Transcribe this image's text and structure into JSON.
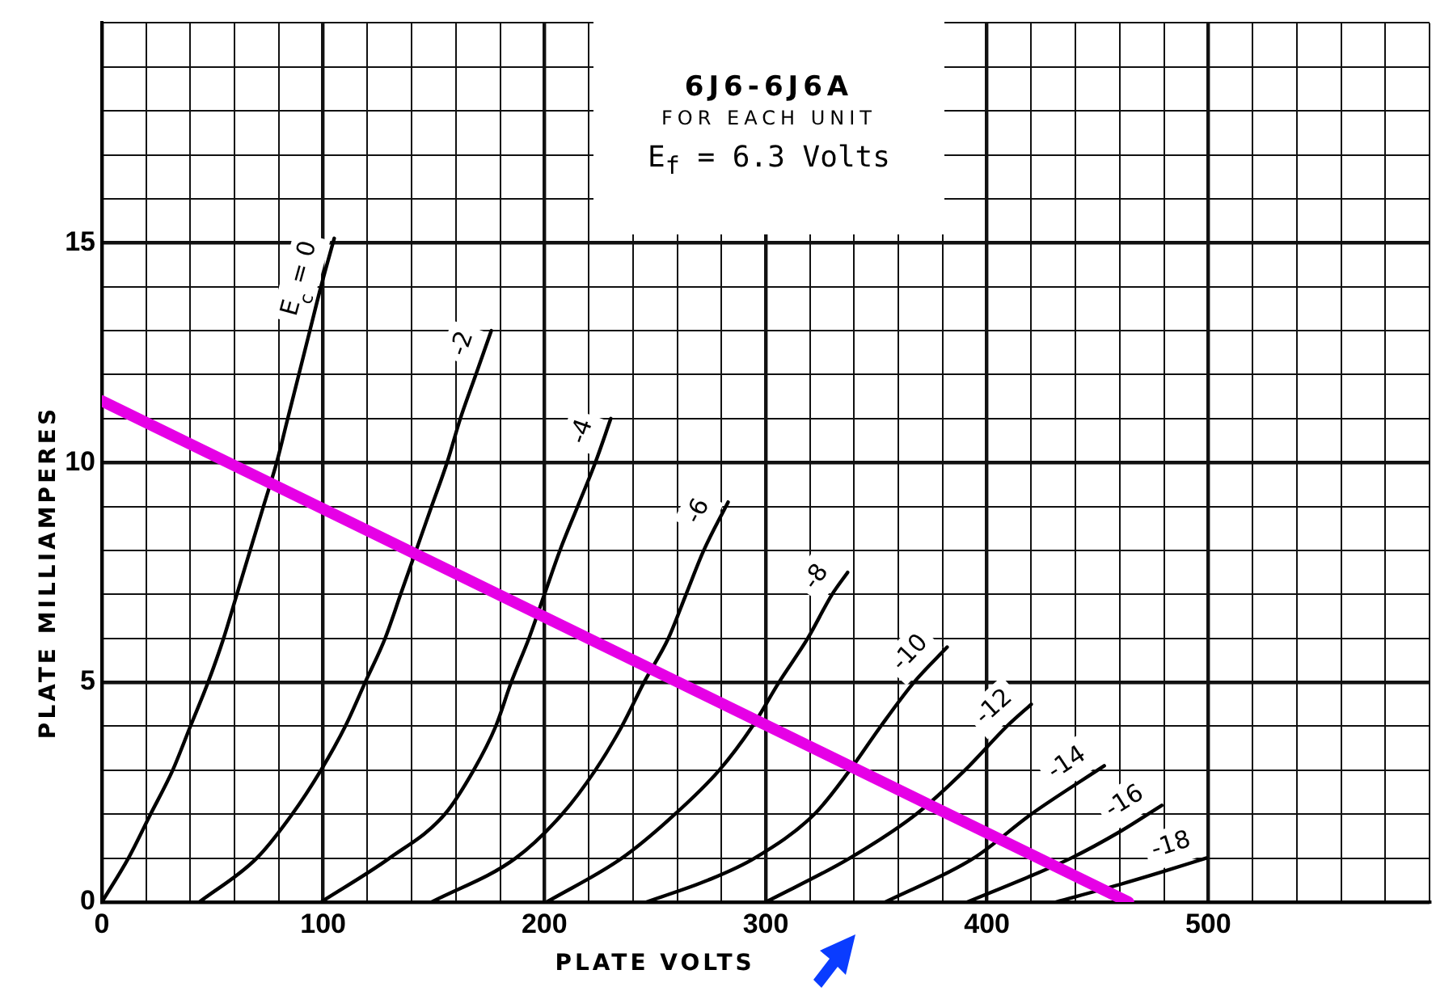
{
  "chart_data": {
    "type": "line",
    "title": "6J6-6J6A",
    "subtitle": "FOR EACH UNIT",
    "annotations": [
      "E$_{f}$ = 6.3 Volts"
    ],
    "xlabel": "PLATE VOLTS",
    "ylabel": "PLATE MILLIAMPERES",
    "xlim": [
      0,
      600
    ],
    "ylim": [
      0,
      20
    ],
    "xticks": [
      0,
      {
        "value": 20,
        "label": null
      },
      {
        "value": 40,
        "label": null
      },
      {
        "value": 60,
        "label": null
      },
      {
        "value": 80,
        "label": null
      },
      100,
      {
        "value": 120,
        "label": null
      },
      {
        "value": 140,
        "label": null
      },
      {
        "value": 160,
        "label": null
      },
      {
        "value": 180,
        "label": null
      },
      200,
      {
        "value": 220,
        "label": null
      },
      {
        "value": 240,
        "label": null
      },
      {
        "value": 260,
        "label": null
      },
      {
        "value": 280,
        "label": null
      },
      300,
      {
        "value": 320,
        "label": null
      },
      {
        "value": 340,
        "label": null
      },
      {
        "value": 360,
        "label": null
      },
      {
        "value": 380,
        "label": null
      },
      400,
      {
        "value": 420,
        "label": null
      },
      {
        "value": 440,
        "label": null
      },
      {
        "value": 460,
        "label": null
      },
      {
        "value": 480,
        "label": null
      },
      500,
      {
        "value": 520,
        "label": null
      },
      {
        "value": 540,
        "label": null
      },
      {
        "value": 560,
        "label": null
      },
      {
        "value": 580,
        "label": null
      },
      {
        "value": 600,
        "label": null
      }
    ],
    "yticks": [
      0,
      {
        "value": 1,
        "label": null
      },
      {
        "value": 2,
        "label": null
      },
      {
        "value": 3,
        "label": null
      },
      {
        "value": 4,
        "label": null
      },
      5,
      {
        "value": 6,
        "label": null
      },
      {
        "value": 7,
        "label": null
      },
      {
        "value": 8,
        "label": null
      },
      {
        "value": 9,
        "label": null
      },
      10,
      {
        "value": 11,
        "label": null
      },
      {
        "value": 12,
        "label": null
      },
      {
        "value": 13,
        "label": null
      },
      {
        "value": 14,
        "label": null
      },
      15,
      {
        "value": 16,
        "label": null
      },
      {
        "value": 17,
        "label": null
      },
      {
        "value": 18,
        "label": null
      },
      {
        "value": 19,
        "label": null
      },
      {
        "value": 20,
        "label": null
      }
    ],
    "grid": true,
    "marker": "none",
    "series": [
      {
        "name": "E$_{c}$ = 0",
        "color": "#000000",
        "x": [
          0,
          12,
          22,
          32,
          40,
          48,
          55,
          61,
          67,
          73,
          79,
          84,
          89,
          94,
          99,
          105
        ],
        "values": [
          0,
          1,
          2,
          3,
          4,
          5,
          6,
          7,
          8,
          9,
          10,
          11,
          12,
          13,
          14,
          15.1
        ]
      },
      {
        "name": "-2",
        "color": "#000000",
        "x": [
          44,
          70,
          86,
          99,
          110,
          119,
          128,
          135,
          142,
          149,
          156,
          162,
          169,
          176
        ],
        "values": [
          0,
          1,
          2,
          3,
          4,
          5,
          6,
          7,
          8,
          9,
          10,
          11,
          12,
          13
        ]
      },
      {
        "name": "-4",
        "color": "#000000",
        "x": [
          99,
          130,
          155,
          168,
          178,
          185,
          193,
          200,
          207,
          215,
          223,
          230
        ],
        "values": [
          0,
          1,
          2,
          3,
          4,
          5,
          6,
          7,
          8,
          9,
          10,
          11
        ]
      },
      {
        "name": "-6",
        "color": "#000000",
        "x": [
          149,
          187,
          208,
          223,
          235,
          245,
          256,
          264,
          272,
          283
        ],
        "values": [
          0,
          1,
          2,
          3,
          4,
          5,
          6,
          7,
          8,
          9.1
        ]
      },
      {
        "name": "-8",
        "color": "#000000",
        "x": [
          201,
          235,
          259,
          279,
          294,
          306,
          319,
          330,
          337
        ],
        "values": [
          0,
          1,
          2,
          3,
          4,
          5,
          6,
          7,
          7.5
        ]
      },
      {
        "name": "-10",
        "color": "#000000",
        "x": [
          246,
          274,
          295,
          322,
          338,
          352,
          367,
          382
        ],
        "values": [
          0,
          0.5,
          1,
          2,
          3,
          4,
          5,
          5.8
        ]
      },
      {
        "name": "-12",
        "color": "#000000",
        "x": [
          300,
          338,
          368,
          390,
          409,
          420
        ],
        "values": [
          0,
          1,
          2,
          3,
          4,
          4.5
        ]
      },
      {
        "name": "-14",
        "color": "#000000",
        "x": [
          354,
          394,
          420,
          453
        ],
        "values": [
          0,
          1,
          2,
          3.1
        ]
      },
      {
        "name": "-16",
        "color": "#000000",
        "x": [
          391,
          420,
          438,
          460,
          479
        ],
        "values": [
          0,
          0.6,
          1,
          1.6,
          2.2
        ]
      },
      {
        "name": "-18",
        "color": "#000000",
        "x": [
          431,
          460,
          480,
          499
        ],
        "values": [
          0,
          0.4,
          0.7,
          1.0
        ]
      },
      {
        "color": "#e600e6",
        "x": [
          0,
          464
        ],
        "values": [
          11.4,
          0
        ]
      }
    ]
  }
}
